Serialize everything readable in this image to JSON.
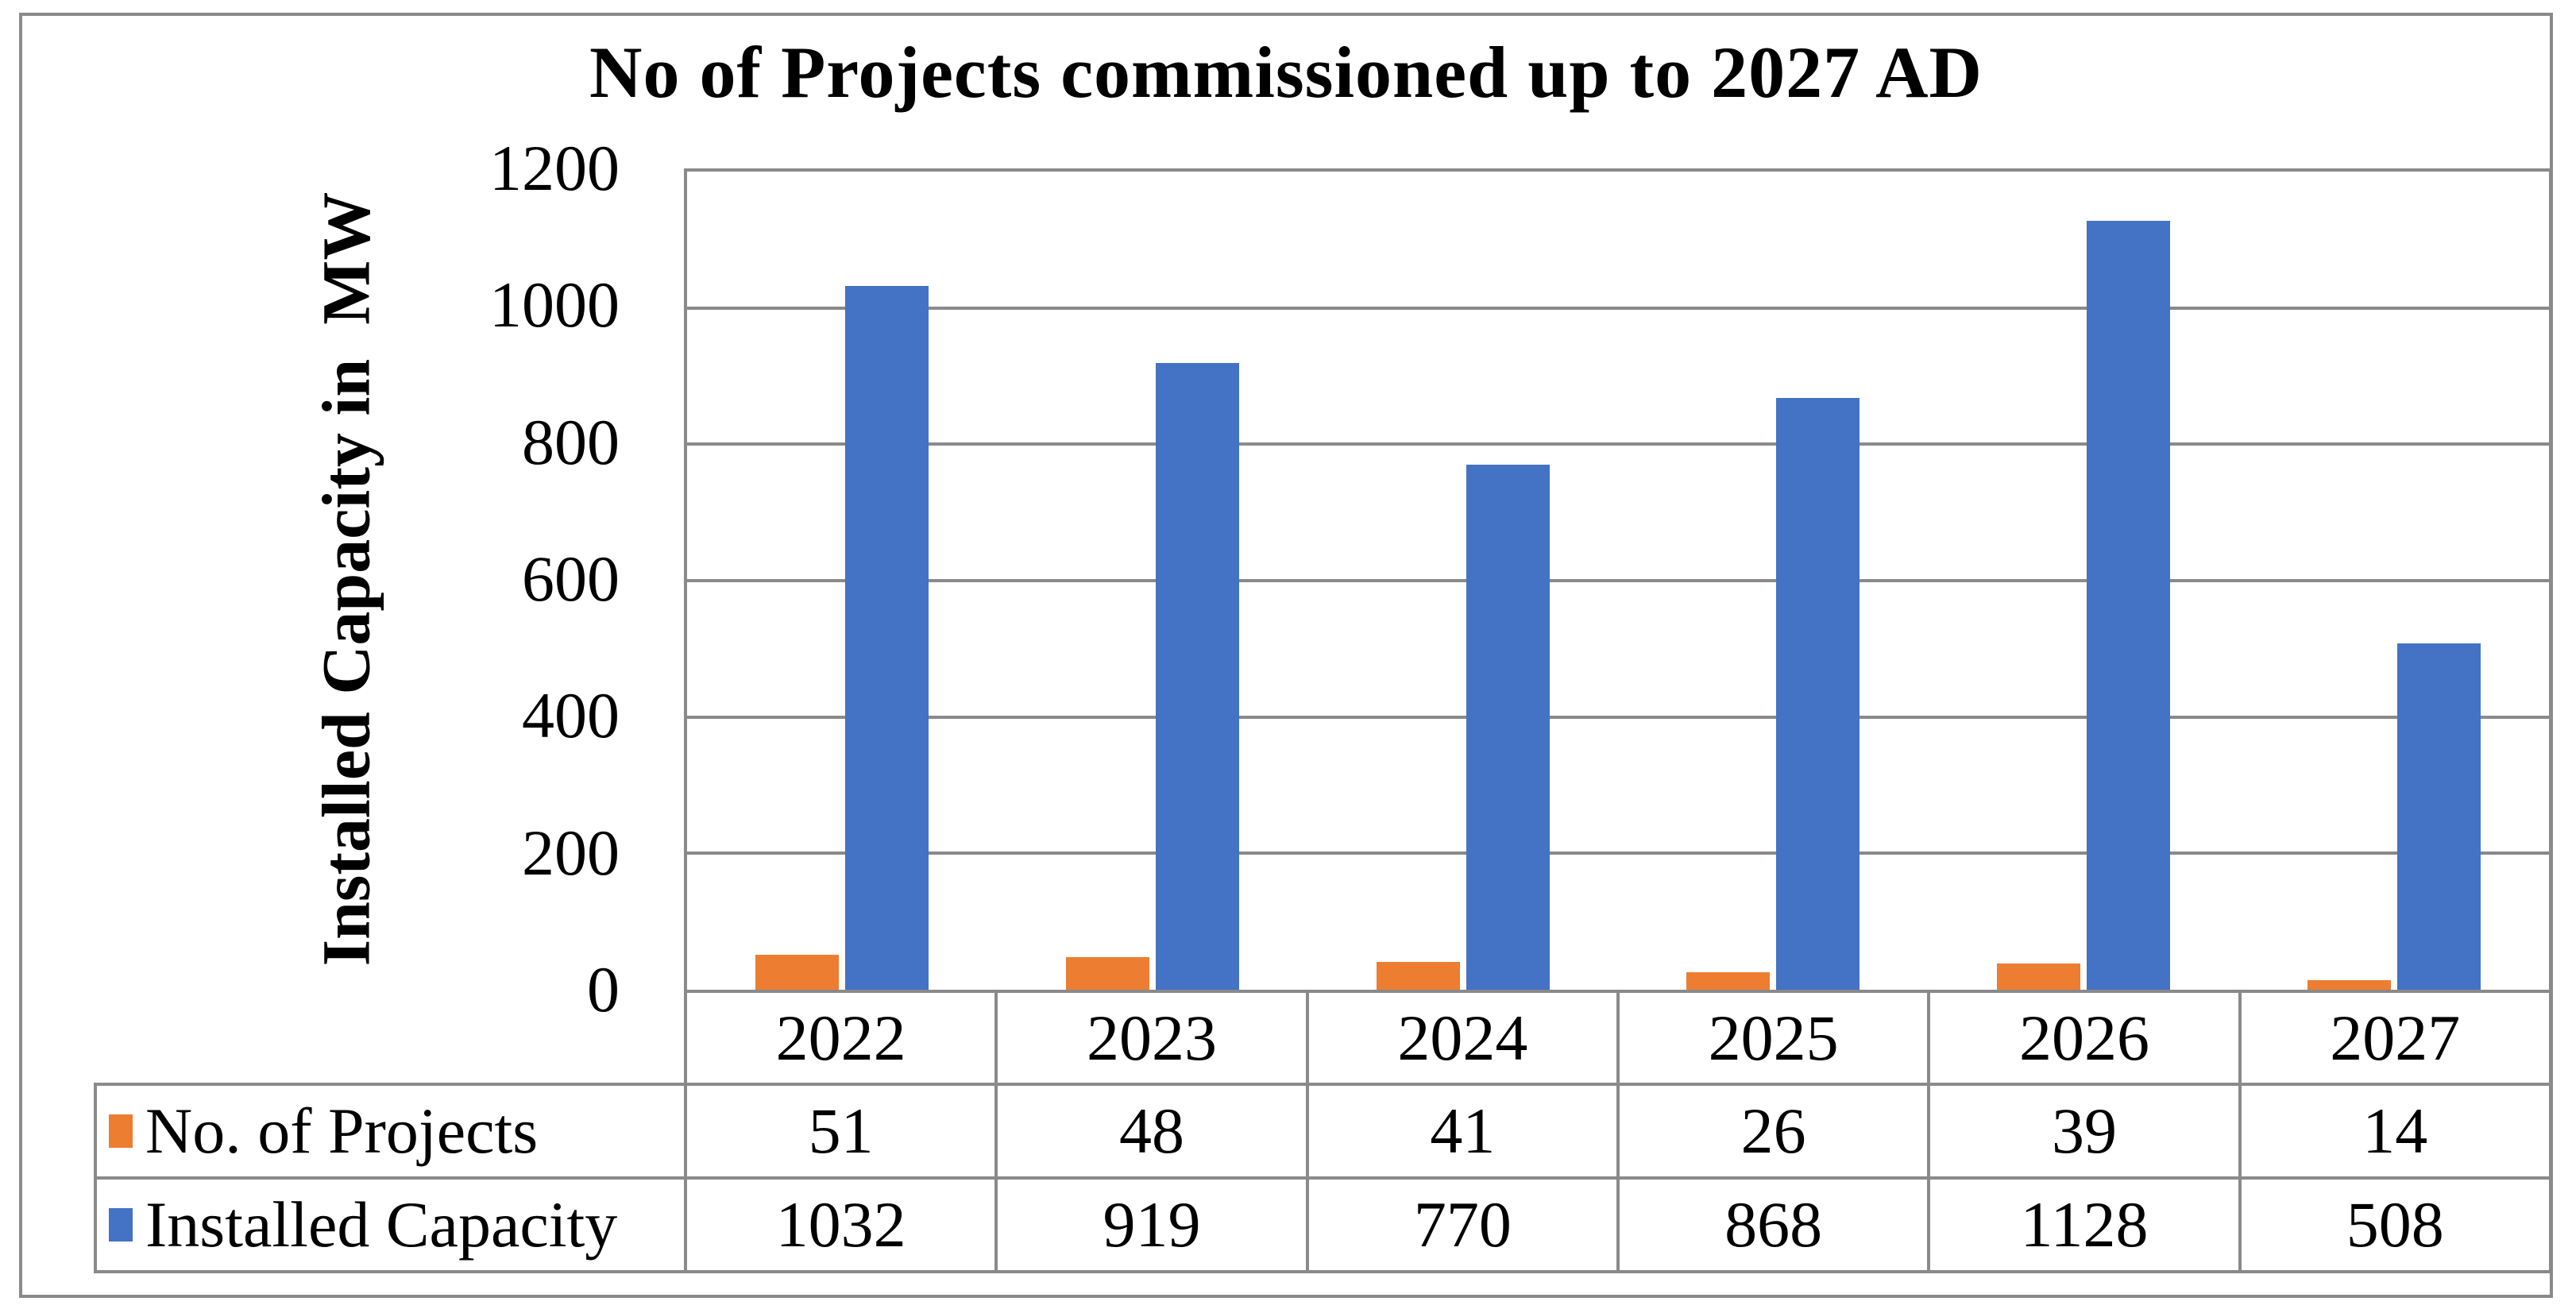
{
  "title": "No of Projects commissioned up to 2027 AD",
  "y_axis_title": "Installed Capacity in  MW",
  "colors": {
    "projects_orange": "#ED7D31",
    "capacity_blue": "#4472C4",
    "line_gray": "#8a8a8a"
  },
  "chart_data": {
    "type": "bar",
    "categories": [
      "2022",
      "2023",
      "2024",
      "2025",
      "2026",
      "2027"
    ],
    "series": [
      {
        "name": "No. of Projects",
        "color": "#ED7D31",
        "values": [
          51,
          48,
          41,
          26,
          39,
          14
        ]
      },
      {
        "name": "Installed Capacity",
        "color": "#4472C4",
        "values": [
          1032,
          919,
          770,
          868,
          1128,
          508
        ]
      }
    ],
    "title": "No of Projects commissioned up to 2027 AD",
    "xlabel": "",
    "ylabel": "Installed Capacity in  MW",
    "ylim": [
      0,
      1200
    ],
    "ytick_step": 200,
    "ytick_labels": [
      "1200",
      "1000",
      "800",
      "600",
      "400",
      "200",
      "0"
    ],
    "grid": true,
    "legend_position": "bottom-table"
  }
}
